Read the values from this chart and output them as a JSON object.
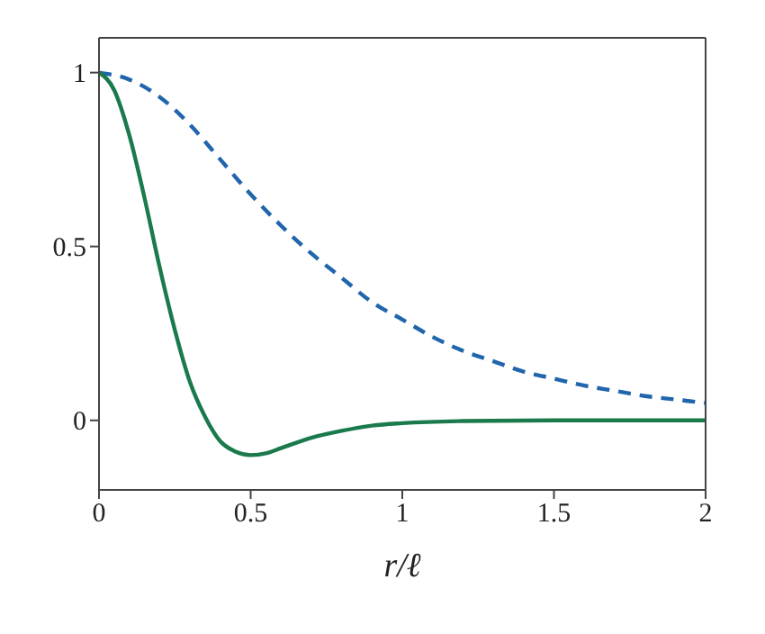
{
  "chart_data": {
    "type": "line",
    "xlabel": "r/ℓ",
    "xlim": [
      0,
      2
    ],
    "xticks": [
      0,
      0.5,
      1,
      1.5,
      2
    ],
    "ylim": [
      -0.2,
      1.1
    ],
    "yticks": [
      0,
      0.5,
      1
    ],
    "series": [
      {
        "color": "#2166ac",
        "line_style": "dashed",
        "x": [
          0,
          0.1,
          0.2,
          0.3,
          0.4,
          0.5,
          0.6,
          0.7,
          0.8,
          0.9,
          1,
          1.1,
          1.2,
          1.3,
          1.4,
          1.5,
          1.6,
          1.7,
          1.8,
          1.9,
          2
        ],
        "values": [
          1,
          0.98,
          0.93,
          0.85,
          0.75,
          0.65,
          0.56,
          0.48,
          0.41,
          0.34,
          0.29,
          0.24,
          0.2,
          0.17,
          0.14,
          0.12,
          0.1,
          0.085,
          0.07,
          0.06,
          0.05
        ]
      },
      {
        "color": "#1a7a4c",
        "line_style": "solid",
        "x": [
          0,
          0.05,
          0.1,
          0.15,
          0.2,
          0.25,
          0.3,
          0.35,
          0.4,
          0.45,
          0.5,
          0.55,
          0.6,
          0.7,
          0.8,
          0.9,
          1,
          1.2,
          1.5,
          2
        ],
        "values": [
          1,
          0.95,
          0.82,
          0.64,
          0.44,
          0.26,
          0.11,
          0.01,
          -0.06,
          -0.09,
          -0.1,
          -0.095,
          -0.08,
          -0.05,
          -0.03,
          -0.015,
          -0.008,
          -0.002,
          0,
          0
        ]
      }
    ]
  }
}
